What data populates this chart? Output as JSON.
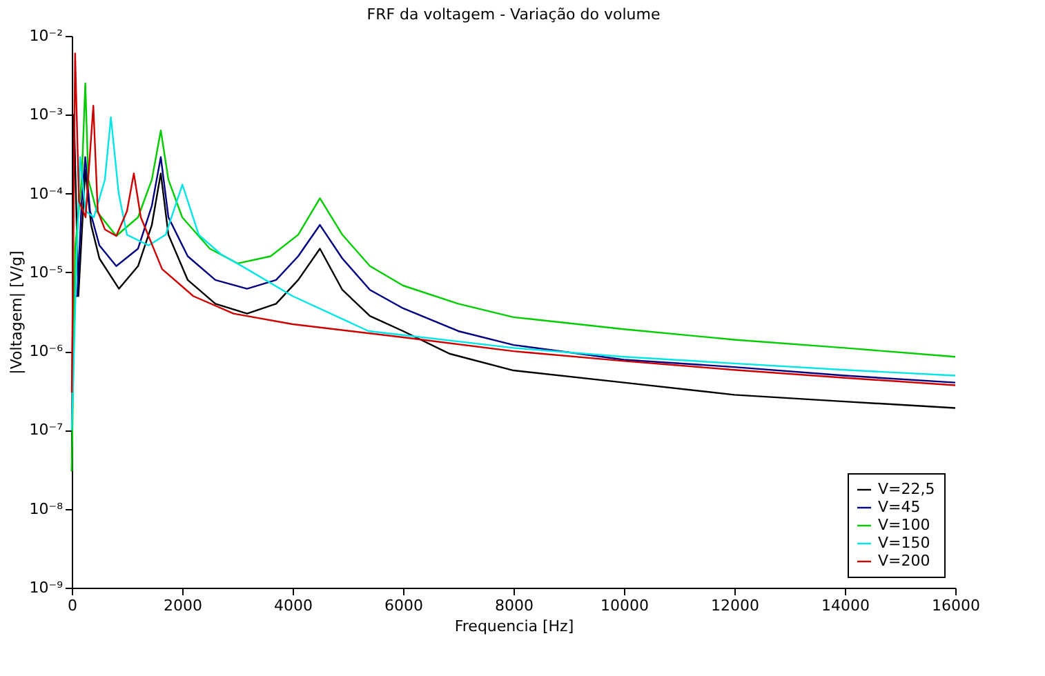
{
  "chart_data": {
    "type": "line",
    "title": "FRF da voltagem - Variação do volume",
    "xlabel": "Frequencia [Hz]",
    "ylabel": "|Voltagem| [V/g]",
    "xlim": [
      0,
      16000
    ],
    "xticks": [
      0,
      2000,
      4000,
      6000,
      8000,
      10000,
      12000,
      14000,
      16000
    ],
    "ylim": [
      1e-09,
      0.01
    ],
    "yticks": [
      {
        "value": 0.01,
        "label": "10⁻²"
      },
      {
        "value": 0.001,
        "label": "10⁻³"
      },
      {
        "value": 0.0001,
        "label": "10⁻⁴"
      },
      {
        "value": 1e-05,
        "label": "10⁻⁵"
      },
      {
        "value": 1e-06,
        "label": "10⁻⁶"
      },
      {
        "value": 1e-07,
        "label": "10⁻⁷"
      },
      {
        "value": 1e-08,
        "label": "10⁻⁸"
      },
      {
        "value": 1e-09,
        "label": "10⁻⁹"
      }
    ],
    "log": "y",
    "grid": false,
    "legend": "bottom right",
    "marker": "none",
    "line_style": "solid",
    "series": [
      {
        "name": "V=22,5",
        "color": "#000000",
        "x": [
          0,
          40,
          120,
          244,
          350,
          500,
          855,
          1200,
          1450,
          1612,
          1750,
          2100,
          2600,
          3175,
          3700,
          4100,
          4494,
          4900,
          5400,
          6000,
          6840,
          8000,
          10000,
          12000,
          14000,
          16000
        ],
        "values": [
          3e-08,
          0.001,
          5e-06,
          0.0002,
          4e-05,
          1.5e-05,
          6.2e-06,
          1.2e-05,
          4e-05,
          0.00018,
          3e-05,
          8e-06,
          4e-06,
          3e-06,
          4e-06,
          8e-06,
          2e-05,
          6e-06,
          2.8e-06,
          1.8e-06,
          9.3e-07,
          5.7e-07,
          4e-07,
          2.8e-07,
          2.3e-07,
          1.9e-07
        ]
      },
      {
        "name": "V=45",
        "color": "#000080",
        "x": [
          0,
          100,
          180,
          244,
          330,
          500,
          806,
          1200,
          1450,
          1612,
          1750,
          2100,
          2600,
          3175,
          3700,
          4100,
          4494,
          4900,
          5400,
          6000,
          7000,
          8000,
          10000,
          12000,
          14000,
          16000
        ],
        "values": [
          5e-06,
          5e-06,
          8e-05,
          0.00029,
          6e-05,
          2.2e-05,
          1.2e-05,
          2e-05,
          7e-05,
          0.00029,
          5e-05,
          1.6e-05,
          8e-06,
          6.2e-06,
          8e-06,
          1.6e-05,
          4e-05,
          1.5e-05,
          6e-06,
          3.5e-06,
          1.8e-06,
          1.2e-06,
          7.8e-07,
          6.3e-07,
          4.9e-07,
          4e-07
        ]
      },
      {
        "name": "V=100",
        "color": "#00cc00",
        "x": [
          0,
          60,
          180,
          245,
          300,
          450,
          806,
          1200,
          1450,
          1612,
          1750,
          2000,
          2500,
          3004,
          3600,
          4100,
          4494,
          4900,
          5400,
          6000,
          7000,
          8000,
          10000,
          12000,
          14000,
          16000
        ],
        "values": [
          3e-08,
          2e-05,
          0.00015,
          0.0025,
          0.00015,
          6e-05,
          2.9e-05,
          5e-05,
          0.00015,
          0.00063,
          0.00015,
          5e-05,
          2e-05,
          1.3e-05,
          1.6e-05,
          3e-05,
          8.7e-05,
          3e-05,
          1.2e-05,
          6.8e-06,
          4e-06,
          2.7e-06,
          1.9e-06,
          1.4e-06,
          1.1e-06,
          8.5e-07
        ]
      },
      {
        "name": "V=150",
        "color": "#00e5e5",
        "x": [
          0,
          80,
          150,
          250,
          400,
          600,
          708,
          850,
          1000,
          1390,
          1700,
          2003,
          2300,
          2700,
          3175,
          4000,
          5374,
          6000,
          8000,
          10000,
          12000,
          14000,
          16000
        ],
        "values": [
          1e-07,
          1e-05,
          0.00029,
          6e-05,
          5e-05,
          0.00015,
          0.00093,
          0.0001,
          3e-05,
          2.2e-05,
          3e-05,
          0.00013,
          3e-05,
          1.7e-05,
          1.1e-05,
          5e-06,
          1.8e-06,
          1.6e-06,
          1.1e-06,
          8.5e-07,
          7e-07,
          5.8e-07,
          4.9e-07
        ]
      },
      {
        "name": "V=200",
        "color": "#cc0000",
        "x": [
          0,
          60,
          130,
          250,
          390,
          470,
          600,
          806,
          1000,
          1124,
          1250,
          1636,
          2200,
          2930,
          4000,
          6000,
          8000,
          10000,
          12000,
          14000,
          16000
        ],
        "values": [
          3e-07,
          0.006,
          8e-05,
          5e-05,
          0.0013,
          6e-05,
          3.5e-05,
          2.9e-05,
          6e-05,
          0.00018,
          5e-05,
          1.1e-05,
          5e-06,
          3e-06,
          2.2e-06,
          1.5e-06,
          1e-06,
          7.5e-07,
          5.8e-07,
          4.6e-07,
          3.7e-07
        ]
      }
    ]
  }
}
